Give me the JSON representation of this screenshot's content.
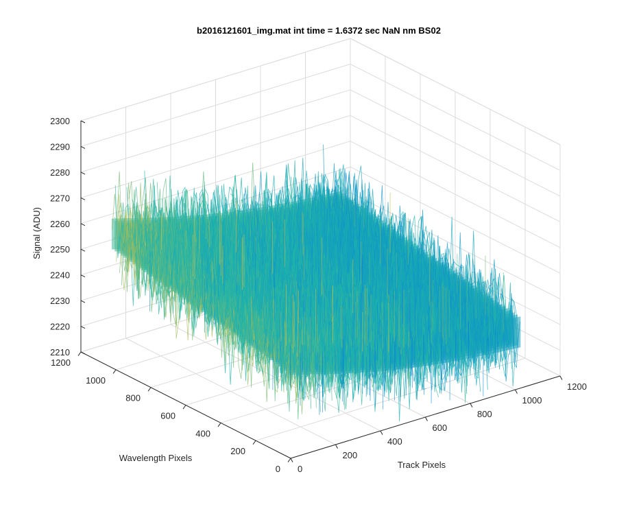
{
  "chart_data": {
    "type": "surface",
    "title": "b2016121601_img.mat int time = 1.6372 sec  NaN nm BS02",
    "xlabel": "Track Pixels",
    "ylabel": "Wavelength Pixels",
    "zlabel": "Signal (ADU)",
    "xlim": [
      0,
      1200
    ],
    "ylim": [
      0,
      1200
    ],
    "zlim": [
      2210,
      2300
    ],
    "x_ticks": [
      0,
      200,
      400,
      600,
      800,
      1000,
      1200
    ],
    "y_ticks": [
      0,
      200,
      400,
      600,
      800,
      1000,
      1200
    ],
    "z_ticks": [
      2210,
      2220,
      2230,
      2240,
      2250,
      2260,
      2270,
      2280,
      2290,
      2300
    ],
    "grid": true,
    "colormap": "parula",
    "surface": {
      "x_range": [
        0,
        1024
      ],
      "y_range": [
        0,
        1024
      ],
      "signal_low": 2232,
      "signal_high": 2262,
      "noise_amplitude": 12
    },
    "colors": {
      "low": "#0a86d6",
      "mid": "#1fb5a9",
      "high": "#f1c232",
      "axis": "#262626",
      "grid": "#dcdcdc"
    }
  }
}
